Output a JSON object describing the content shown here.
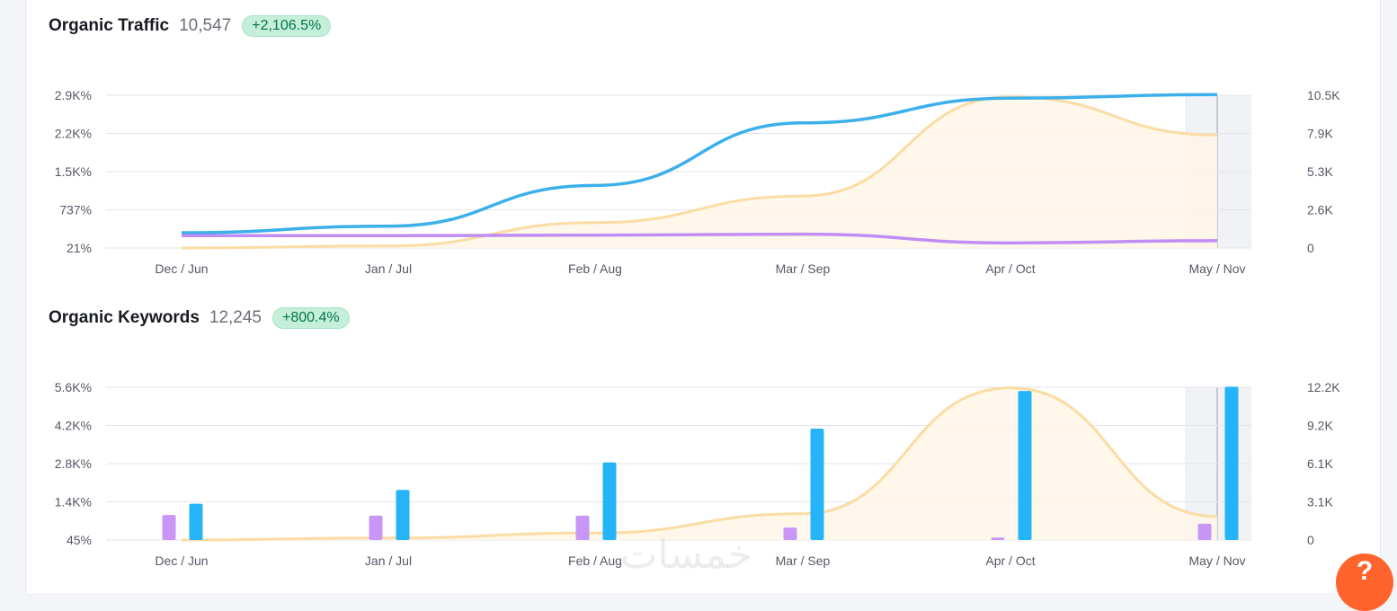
{
  "traffic": {
    "title": "Organic Traffic",
    "value": "10,547",
    "change": "+2,106.5%"
  },
  "keywords": {
    "title": "Organic Keywords",
    "value": "12,245",
    "change": "+800.4%"
  },
  "watermark": "خمسات",
  "help_icon": "?",
  "colors": {
    "blue": "#3bb0ea",
    "purple": "#c08cf5",
    "orange_line": "#fbdca4",
    "orange_fill": "#fff6e6",
    "bar_blue": "#25b4f8",
    "bar_purple": "#c896f7",
    "help": "#ff642d"
  },
  "chart_data": [
    {
      "type": "line",
      "categories": [
        "Dec / Jun",
        "Jan / Jul",
        "Feb / Aug",
        "Mar / Sep",
        "Apr / Oct",
        "May / Nov"
      ],
      "left_ticks": [
        "2.9K%",
        "2.2K%",
        "1.5K%",
        "737%",
        "21%"
      ],
      "right_ticks": [
        "10.5K",
        "7.9K",
        "5.3K",
        "2.6K",
        "0"
      ],
      "left_ylim": [
        21,
        2900
      ],
      "right_ylim": [
        0,
        10500
      ],
      "series": [
        {
          "axis": "right",
          "color": "#3bb0ea",
          "values": [
            1050,
            1500,
            4300,
            8600,
            10300,
            10547
          ]
        },
        {
          "axis": "right",
          "color": "#c08cf5",
          "values": [
            850,
            850,
            880,
            950,
            350,
            500
          ]
        },
        {
          "axis": "left",
          "color": "#fbdca4",
          "area": true,
          "values": [
            21,
            60,
            500,
            1000,
            2870,
            2150
          ]
        }
      ]
    },
    {
      "type": "bar",
      "categories": [
        "Dec / Jun",
        "Jan / Jul",
        "Feb / Aug",
        "Mar / Sep",
        "Apr / Oct",
        "May / Nov"
      ],
      "left_ticks": [
        "5.6K%",
        "4.2K%",
        "2.8K%",
        "1.4K%",
        "45%"
      ],
      "right_ticks": [
        "12.2K",
        "9.2K",
        "6.1K",
        "3.1K",
        "0"
      ],
      "left_ylim": [
        45,
        5600
      ],
      "right_ylim": [
        0,
        12200
      ],
      "series": [
        {
          "axis": "right",
          "type": "bar",
          "color": "#c896f7",
          "values": [
            2000,
            1950,
            1950,
            1000,
            200,
            1300
          ]
        },
        {
          "axis": "right",
          "type": "bar",
          "color": "#25b4f8",
          "values": [
            2900,
            4000,
            6200,
            8900,
            11900,
            12245
          ]
        },
        {
          "axis": "left",
          "type": "line",
          "area": true,
          "color": "#fbdca4",
          "values": [
            45,
            120,
            300,
            1000,
            5580,
            900
          ]
        }
      ]
    }
  ]
}
